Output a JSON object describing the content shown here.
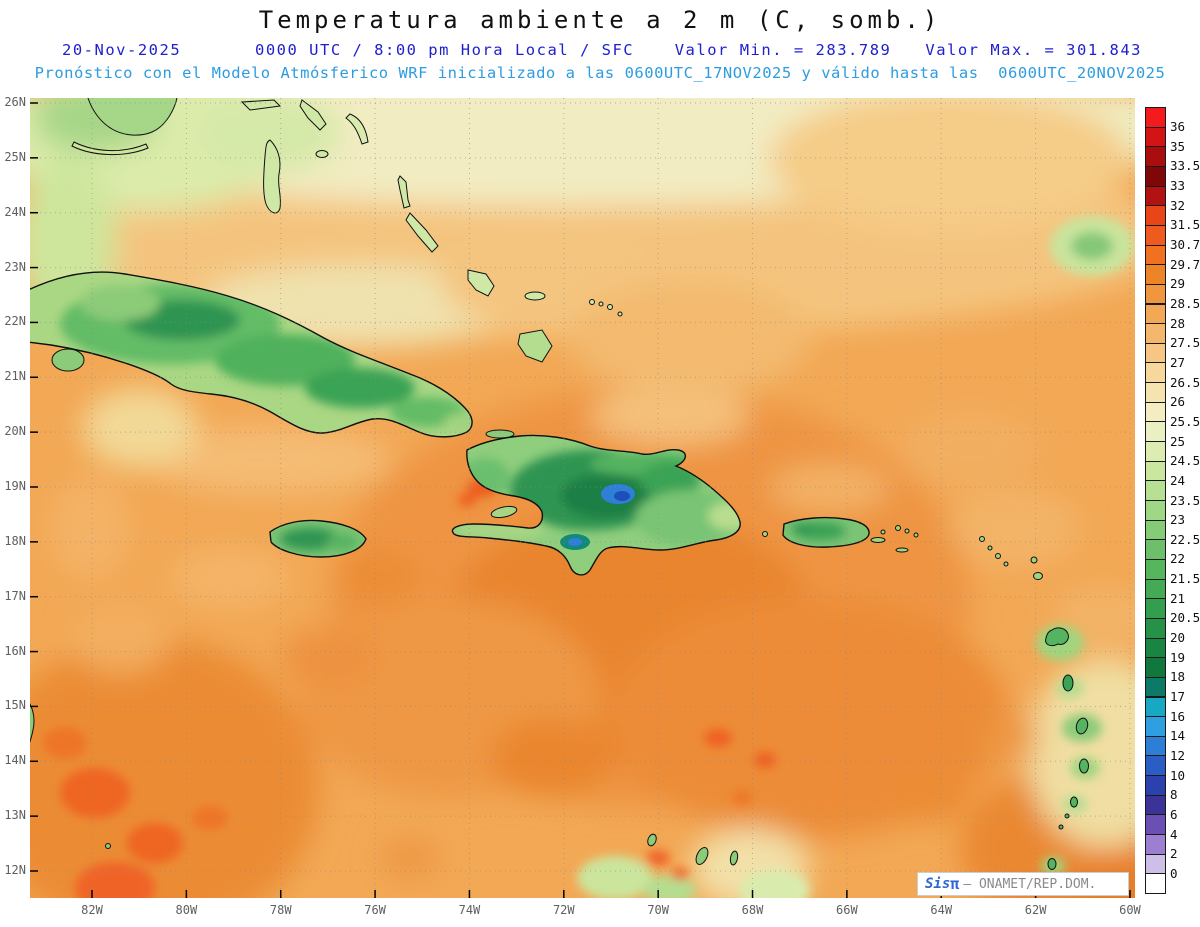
{
  "header": {
    "title": "Temperatura ambiente a 2 m (C, somb.)",
    "date": "20-Nov-2025",
    "time": "0000 UTC / 8:00 pm Hora Local / SFC",
    "valor_min": "Valor Min. = 283.789",
    "valor_max": "Valor Max. = 301.843",
    "model_line": "Pronóstico con el Modelo Atmósferico WRF inicializado a las 0600UTC_17NOV2025 y válido hasta las  0600UTC_20NOV2025"
  },
  "axes": {
    "lat_ticks": [
      "26N",
      "25N",
      "24N",
      "23N",
      "22N",
      "21N",
      "20N",
      "19N",
      "18N",
      "17N",
      "16N",
      "15N",
      "14N",
      "13N",
      "12N"
    ],
    "lon_ticks": [
      "82W",
      "80W",
      "78W",
      "76W",
      "74W",
      "72W",
      "70W",
      "68W",
      "66W",
      "64W",
      "62W",
      "60W"
    ]
  },
  "legend": {
    "labels": [
      "36",
      "35",
      "33.5",
      "33",
      "32",
      "31.5",
      "30.7",
      "29.7",
      "29",
      "28.5",
      "28",
      "27.5",
      "27",
      "26.5",
      "26",
      "25.5",
      "25",
      "24.5",
      "24",
      "23.5",
      "23",
      "22.5",
      "22",
      "21.5",
      "21",
      "20.5",
      "20",
      "19",
      "18",
      "17",
      "16",
      "14",
      "12",
      "10",
      "8",
      "6",
      "4",
      "2",
      "0"
    ],
    "colors": [
      "#f31b1b",
      "#d31414",
      "#aa0d0d",
      "#7f0707",
      "#b31212",
      "#e84618",
      "#ef5a1f",
      "#f0711f",
      "#ee8428",
      "#f0963e",
      "#f2a855",
      "#f4b86c",
      "#f5c684",
      "#f6d79c",
      "#f5e4af",
      "#f4edc2",
      "#ebf0c2",
      "#ddedb2",
      "#cbe79f",
      "#b7e092",
      "#a0d785",
      "#86cb76",
      "#6dc069",
      "#57b55e",
      "#44aa55",
      "#339e4e",
      "#259247",
      "#1a8542",
      "#10783c",
      "#0d7a68",
      "#17a9c4",
      "#2e9fe0",
      "#2b7fd6",
      "#2a5ec4",
      "#2a41ae",
      "#3b3398",
      "#6a4fb4",
      "#9c7fd0",
      "#cdbfe8",
      "#ffffff"
    ]
  },
  "watermark": {
    "brand": "Sis",
    "pi": "π",
    "text": "– ONAMET/REP.DOM."
  },
  "palette": {
    "title_color": "#111111",
    "header_blue": "#2020cf",
    "subheader_blue": "#2e9ce0",
    "watermark_blue": "#2b66d4",
    "watermark_gray": "#8a8a8a",
    "base_sea_orange": "#f2a855",
    "land_green": "#55b460"
  }
}
